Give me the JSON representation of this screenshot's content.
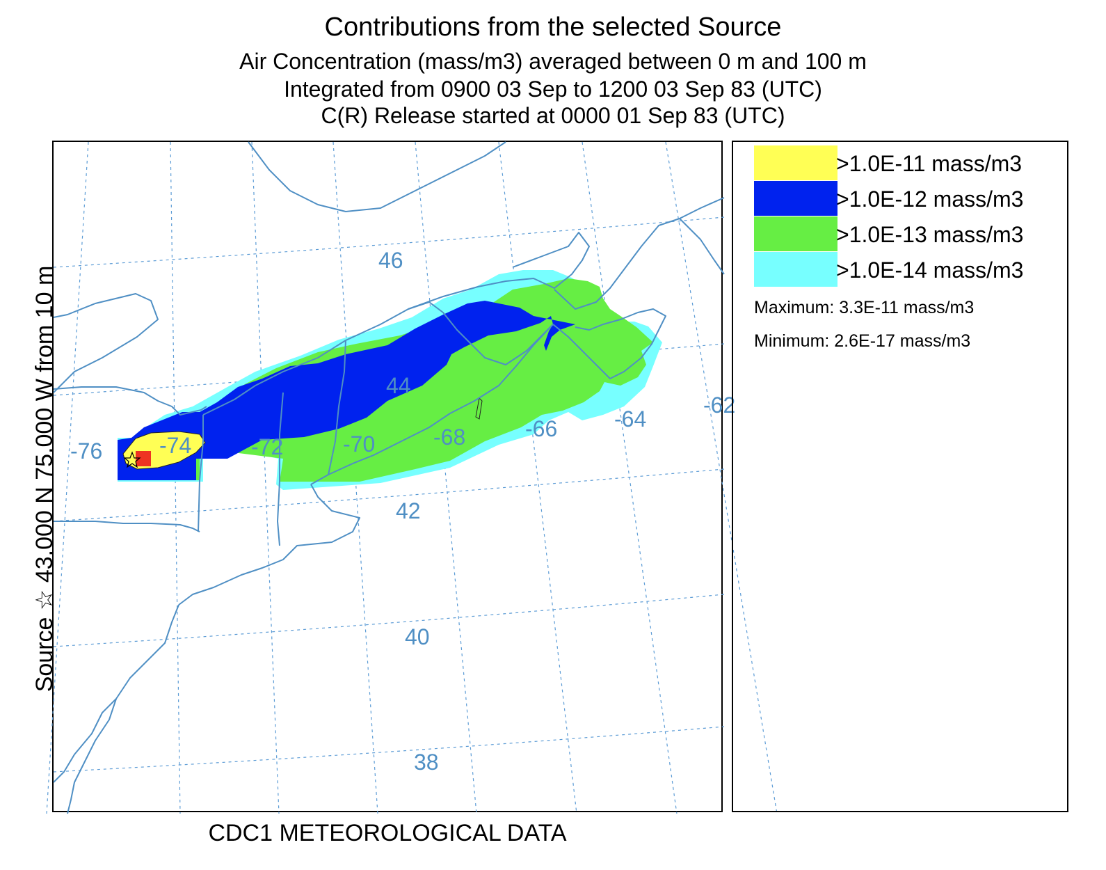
{
  "titles": {
    "line1": "Contributions from the selected Source",
    "line2": "Air Concentration  (mass/m3) averaged between     0 m and   100 m",
    "line3": "Integrated from 0900 03 Sep to 1200 03 Sep 83 (UTC)",
    "line4": "C(R) Release started at 0000 01 Sep 83 (UTC)"
  },
  "side_label": "Source ☆ 43.000  N  75.000  W  from  10 m",
  "footer": "CDC1 METEOROLOGICAL DATA",
  "map": {
    "lat_labels": [
      "46",
      "44",
      "42",
      "40",
      "38"
    ],
    "lon_labels": [
      "-76",
      "-74",
      "-72",
      "-70",
      "-68",
      "-66",
      "-64",
      "-62"
    ],
    "source": {
      "lat": 43.0,
      "lon": -75.0
    },
    "colors": {
      "grid": "#5b9bd5",
      "coast": "#4f8fc4",
      "level_1e11": "#ffff55",
      "level_1e12": "#0022ee",
      "level_1e13": "#66ee44",
      "level_1e14": "#77ffff",
      "maximum_cell": "#ee3322"
    }
  },
  "legend": {
    "items": [
      {
        "label": ">1.0E-11 mass/m3",
        "color": "#ffff55"
      },
      {
        "label": ">1.0E-12 mass/m3",
        "color": "#0022ee"
      },
      {
        "label": ">1.0E-13 mass/m3",
        "color": "#66ee44"
      },
      {
        "label": ">1.0E-14 mass/m3",
        "color": "#77ffff"
      }
    ],
    "maximum": "Maximum: 3.3E-11 mass/m3",
    "minimum": "Minimum: 2.6E-17 mass/m3"
  }
}
